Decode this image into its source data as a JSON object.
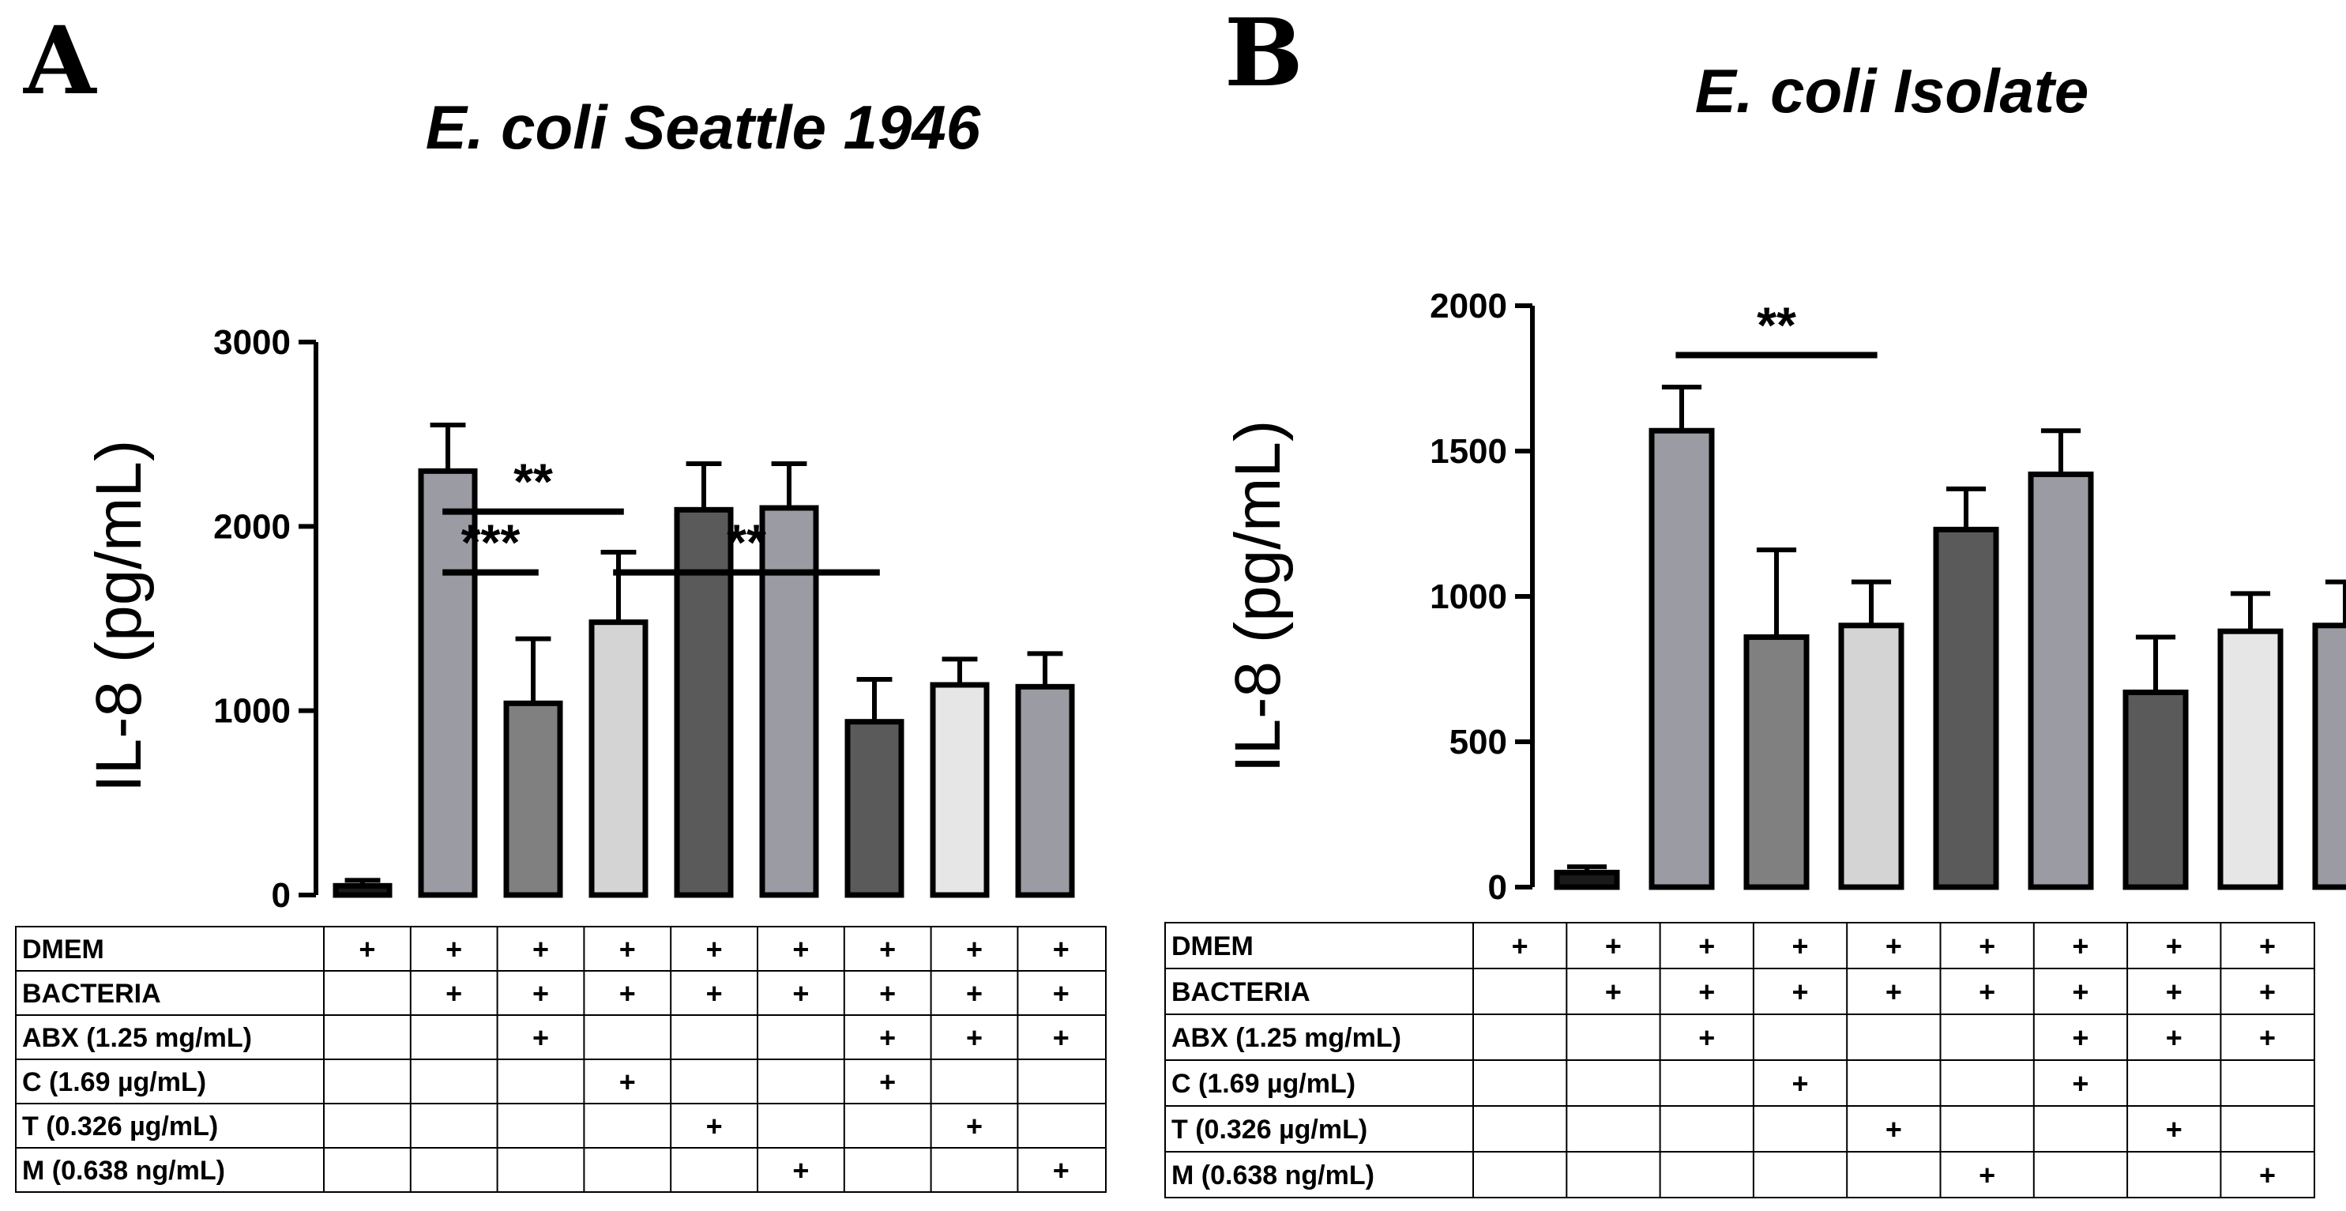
{
  "chart_data": [
    {
      "panel": "A",
      "type": "bar",
      "title": "E. coli Seattle 1946",
      "ylabel": "IL-8 (pg/mL)",
      "xlabel": "",
      "ylim": [
        0,
        3000
      ],
      "yticks": [
        0,
        1000,
        2000,
        3000
      ],
      "values": [
        50,
        2300,
        1040,
        1480,
        2090,
        2100,
        940,
        1140,
        1130
      ],
      "errors": [
        30,
        250,
        350,
        380,
        250,
        240,
        230,
        140,
        180
      ],
      "colors": [
        "#1a1a1a",
        "#9b9ba3",
        "#808080",
        "#d4d4d4",
        "#5a5a5a",
        "#9b9ba3",
        "#5a5a5a",
        "#e6e6e6",
        "#9b9ba3"
      ],
      "significance": [
        {
          "from": 1,
          "to": 2,
          "level": 1750,
          "label": "***"
        },
        {
          "from": 1,
          "to": 3,
          "level": 2080,
          "label": "**"
        },
        {
          "from": 3,
          "to": 6,
          "level": 1750,
          "label": "**"
        }
      ],
      "table": {
        "rows": [
          {
            "label": "DMEM",
            "cells": [
              "+",
              "+",
              "+",
              "+",
              "+",
              "+",
              "+",
              "+",
              "+"
            ]
          },
          {
            "label": "BACTERIA",
            "cells": [
              "",
              "+",
              "+",
              "+",
              "+",
              "+",
              "+",
              "+",
              "+"
            ]
          },
          {
            "label": "ABX (1.25 mg/mL)",
            "cells": [
              "",
              "",
              "+",
              "",
              "",
              "",
              "+",
              "+",
              "+"
            ]
          },
          {
            "label": "C (1.69 µg/mL)",
            "cells": [
              "",
              "",
              "",
              "+",
              "",
              "",
              "+",
              "",
              ""
            ]
          },
          {
            "label": "T (0.326 µg/mL)",
            "cells": [
              "",
              "",
              "",
              "",
              "+",
              "",
              "",
              "+",
              ""
            ]
          },
          {
            "label": "M (0.638 ng/mL)",
            "cells": [
              "",
              "",
              "",
              "",
              "",
              "+",
              "",
              "",
              "+"
            ]
          }
        ]
      }
    },
    {
      "panel": "B",
      "type": "bar",
      "title": "E. coli Isolate",
      "ylabel": "IL-8 (pg/mL)",
      "xlabel": "",
      "ylim": [
        0,
        2000
      ],
      "yticks": [
        0,
        500,
        1000,
        1500,
        2000
      ],
      "values": [
        50,
        1570,
        860,
        900,
        1230,
        1420,
        670,
        880,
        900
      ],
      "errors": [
        20,
        150,
        300,
        150,
        140,
        150,
        190,
        130,
        150
      ],
      "colors": [
        "#1a1a1a",
        "#9b9ba3",
        "#808080",
        "#d4d4d4",
        "#5a5a5a",
        "#9b9ba3",
        "#5a5a5a",
        "#e6e6e6",
        "#9b9ba3"
      ],
      "significance": [
        {
          "from": 1,
          "to": 3,
          "level": 1830,
          "label": "**"
        }
      ],
      "table": {
        "rows": [
          {
            "label": "DMEM",
            "cells": [
              "+",
              "+",
              "+",
              "+",
              "+",
              "+",
              "+",
              "+",
              "+"
            ]
          },
          {
            "label": "BACTERIA",
            "cells": [
              "",
              "+",
              "+",
              "+",
              "+",
              "+",
              "+",
              "+",
              "+"
            ]
          },
          {
            "label": "ABX (1.25 mg/mL)",
            "cells": [
              "",
              "",
              "+",
              "",
              "",
              "",
              "+",
              "+",
              "+"
            ]
          },
          {
            "label": "C (1.69 µg/mL)",
            "cells": [
              "",
              "",
              "",
              "+",
              "",
              "",
              "+",
              "",
              ""
            ]
          },
          {
            "label": "T (0.326 µg/mL)",
            "cells": [
              "",
              "",
              "",
              "",
              "+",
              "",
              "",
              "+",
              ""
            ]
          },
          {
            "label": "M (0.638 ng/mL)",
            "cells": [
              "",
              "",
              "",
              "",
              "",
              "+",
              "",
              "",
              "+"
            ]
          }
        ]
      }
    }
  ]
}
